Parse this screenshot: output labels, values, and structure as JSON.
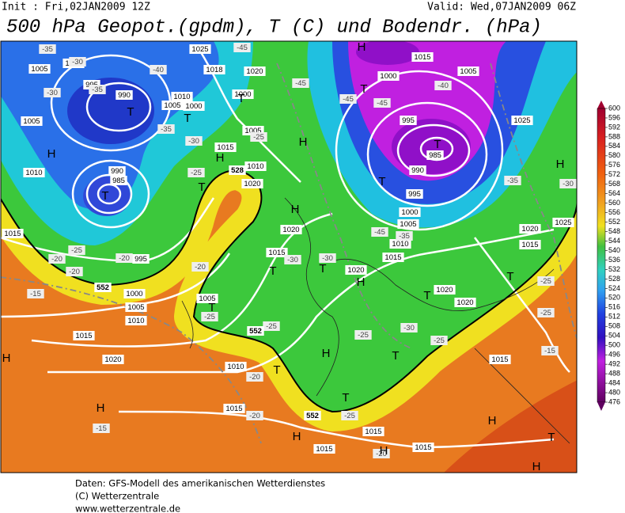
{
  "header": {
    "init": "Init : Fri,02JAN2009 12Z",
    "valid": "Valid: Wed,07JAN2009 06Z",
    "title": "500 hPa Geopot.(gpdm), T (C) und Bodendr. (hPa)"
  },
  "colorbar": {
    "ticks": [
      "600",
      "596",
      "592",
      "588",
      "584",
      "580",
      "576",
      "572",
      "568",
      "564",
      "560",
      "556",
      "552",
      "548",
      "544",
      "540",
      "536",
      "532",
      "528",
      "524",
      "520",
      "516",
      "512",
      "508",
      "504",
      "500",
      "496",
      "492",
      "488",
      "484",
      "480",
      "476"
    ]
  },
  "map": {
    "pressure_labels": [
      "1000",
      "1005",
      "995",
      "990",
      "1005",
      "1010",
      "990",
      "985",
      "1015",
      "995",
      "1000",
      "1005",
      "1010",
      "1015",
      "1020",
      "1005",
      "1010",
      "1015",
      "1015",
      "1015",
      "1015",
      "1025",
      "1018",
      "1010",
      "1005",
      "1000",
      "1000",
      "1005",
      "1015",
      "1010",
      "1020",
      "1020",
      "1015",
      "1020",
      "1015",
      "1010",
      "1000",
      "995",
      "985",
      "990",
      "995",
      "1000",
      "1005",
      "1015",
      "1005",
      "1025",
      "1025",
      "1020",
      "1015",
      "1020",
      "1015",
      "1020",
      "1020"
    ],
    "temperature_labels": [
      "-35",
      "-30",
      "-30",
      "-35",
      "-35",
      "-30",
      "-25",
      "-25",
      "-20",
      "-20",
      "-20",
      "-15",
      "-20",
      "-25",
      "-20",
      "-20",
      "-15",
      "-25",
      "-25",
      "-45",
      "-45",
      "-45",
      "-40",
      "-45",
      "-35",
      "-30",
      "-30",
      "-25",
      "-30",
      "-25",
      "-25",
      "-20",
      "-25",
      "-25",
      "-15",
      "-35",
      "-30",
      "-45",
      "-40"
    ],
    "contour_labels": [
      "552",
      "552",
      "552",
      "528"
    ],
    "high_centers": [
      "H",
      "H",
      "H",
      "H",
      "H",
      "H",
      "H",
      "H",
      "H",
      "H",
      "H",
      "H",
      "H",
      "H"
    ],
    "low_centers": [
      "T",
      "T",
      "T",
      "T",
      "T",
      "T",
      "T",
      "T",
      "T",
      "T",
      "T",
      "T",
      "T",
      "T",
      "T",
      "T",
      "T"
    ]
  },
  "footer": {
    "lines": [
      "Daten: GFS-Modell des amerikanischen Wetterdienstes",
      "(C) Wetterzentrale",
      "www.wetterzentrale.de"
    ]
  }
}
